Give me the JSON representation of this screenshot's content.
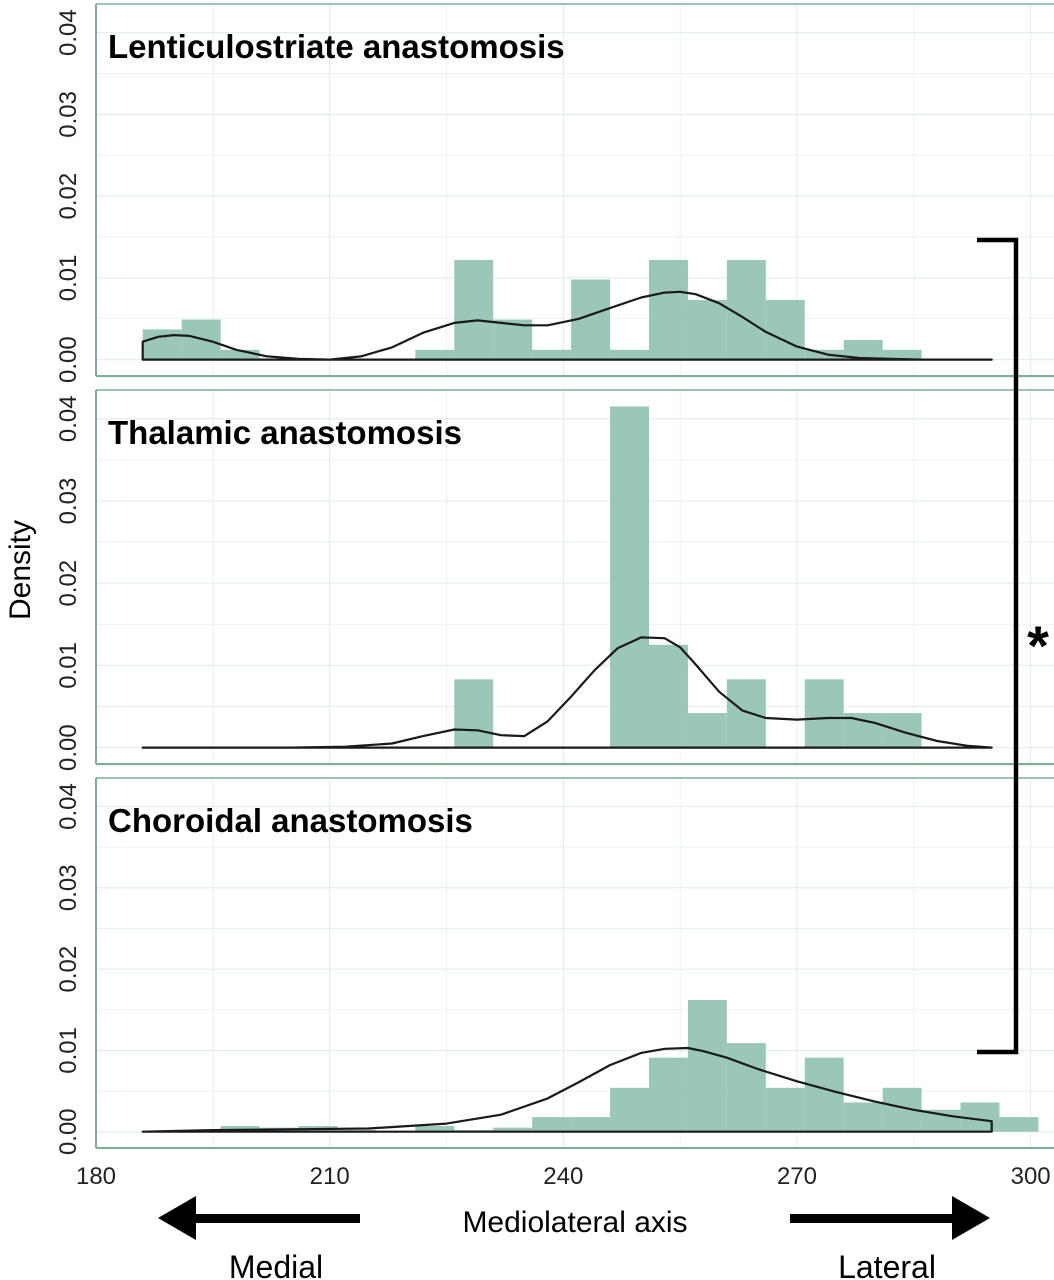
{
  "chart_data": {
    "type": "bar",
    "xlabel": "Mediolateral axis",
    "ylabel": "Density",
    "xlim": [
      180,
      303
    ],
    "ylim": [
      -0.002,
      0.0435
    ],
    "xticks": [
      "180",
      "210",
      "240",
      "270",
      "300"
    ],
    "yticks": [
      "0.00",
      "0.01",
      "0.02",
      "0.03",
      "0.04"
    ],
    "bin_width": 5,
    "grid": true,
    "colors": {
      "bar": "#96c4b2",
      "curve": "#1a1a1a",
      "frame": "#7fae98",
      "grid": "#e3efea"
    },
    "panels": [
      {
        "title": "Lenticulostriate anastomosis",
        "histogram": {
          "bin_start": [
            186,
            191,
            196,
            201,
            206,
            211,
            216,
            221,
            226,
            231,
            236,
            241,
            246,
            251,
            256,
            261,
            266,
            271,
            276,
            281,
            286,
            291
          ],
          "density": [
            0.0037,
            0.0049,
            0.0012,
            0,
            0,
            0,
            0,
            0.0012,
            0.0122,
            0.0049,
            0.0012,
            0.0098,
            0.0012,
            0.0122,
            0.0073,
            0.0122,
            0.0073,
            0.0012,
            0.0024,
            0.0012,
            0,
            0
          ]
        },
        "density_curve": {
          "x": [
            186,
            188,
            190,
            192,
            195,
            198,
            202,
            206,
            210,
            214,
            218,
            222,
            226,
            229,
            232,
            235,
            238,
            242,
            246,
            250,
            253,
            255,
            257,
            260,
            263,
            266,
            270,
            274,
            278,
            282,
            286,
            290,
            295
          ],
          "y": [
            0.0022,
            0.0028,
            0.003,
            0.0029,
            0.0022,
            0.0012,
            0.0004,
            0.0001,
            0.0,
            0.0004,
            0.0015,
            0.0033,
            0.0045,
            0.0048,
            0.0045,
            0.0042,
            0.0042,
            0.005,
            0.0063,
            0.0076,
            0.0082,
            0.0083,
            0.008,
            0.0069,
            0.0052,
            0.0034,
            0.0016,
            0.0006,
            0.0002,
            0.0001,
            0.0,
            0.0,
            0.0
          ]
        }
      },
      {
        "title": "Thalamic anastomosis",
        "histogram": {
          "bin_start": [
            186,
            191,
            196,
            201,
            206,
            211,
            216,
            221,
            226,
            231,
            236,
            241,
            246,
            251,
            256,
            261,
            266,
            271,
            276,
            281,
            286,
            291
          ],
          "density": [
            0,
            0,
            0,
            0,
            0,
            0,
            0,
            0,
            0.0083,
            0,
            0,
            0,
            0.0415,
            0.0125,
            0.0042,
            0.0083,
            0,
            0.0083,
            0.0042,
            0.0042,
            0,
            0
          ]
        },
        "density_curve": {
          "x": [
            186,
            195,
            205,
            212,
            218,
            222,
            226,
            229,
            232,
            235,
            238,
            241,
            244,
            247,
            250,
            253,
            255,
            257,
            260,
            263,
            266,
            270,
            274,
            277,
            280,
            284,
            288,
            292,
            295
          ],
          "y": [
            0.0,
            0.0,
            0.0,
            0.0001,
            0.0005,
            0.0014,
            0.0022,
            0.0021,
            0.0015,
            0.0014,
            0.0032,
            0.0062,
            0.0094,
            0.0121,
            0.0134,
            0.0133,
            0.0122,
            0.0101,
            0.0068,
            0.0045,
            0.0036,
            0.0034,
            0.0036,
            0.0036,
            0.003,
            0.0018,
            0.0008,
            0.0002,
            0.0
          ]
        }
      },
      {
        "title": "Choroidal anastomosis",
        "histogram": {
          "bin_start": [
            186,
            191,
            196,
            201,
            206,
            211,
            216,
            221,
            226,
            231,
            236,
            241,
            246,
            251,
            256,
            261,
            266,
            271,
            276,
            281,
            286,
            291,
            296
          ],
          "density": [
            0,
            0,
            0.0007,
            0.0005,
            0.0007,
            0.0002,
            0,
            0.0007,
            0.0002,
            0.0005,
            0.0018,
            0.0018,
            0.0054,
            0.0091,
            0.0162,
            0.0109,
            0.0054,
            0.0091,
            0.0036,
            0.0054,
            0.0027,
            0.0036,
            0.0018
          ]
        },
        "density_curve": {
          "x": [
            186,
            195,
            205,
            215,
            225,
            232,
            238,
            242,
            246,
            250,
            253,
            256,
            258,
            261,
            265,
            270,
            275,
            280,
            285,
            290,
            295
          ],
          "y": [
            0.0,
            0.0002,
            0.0003,
            0.0004,
            0.001,
            0.0021,
            0.0041,
            0.0061,
            0.0082,
            0.0097,
            0.0102,
            0.0103,
            0.0099,
            0.0091,
            0.0077,
            0.0062,
            0.0049,
            0.0037,
            0.0027,
            0.0019,
            0.0013
          ]
        }
      }
    ],
    "annotations": {
      "significance": "*",
      "bracket_between": [
        "Lenticulostriate anastomosis",
        "Choroidal anastomosis"
      ],
      "direction_left": "Medial",
      "direction_right": "Lateral"
    }
  }
}
